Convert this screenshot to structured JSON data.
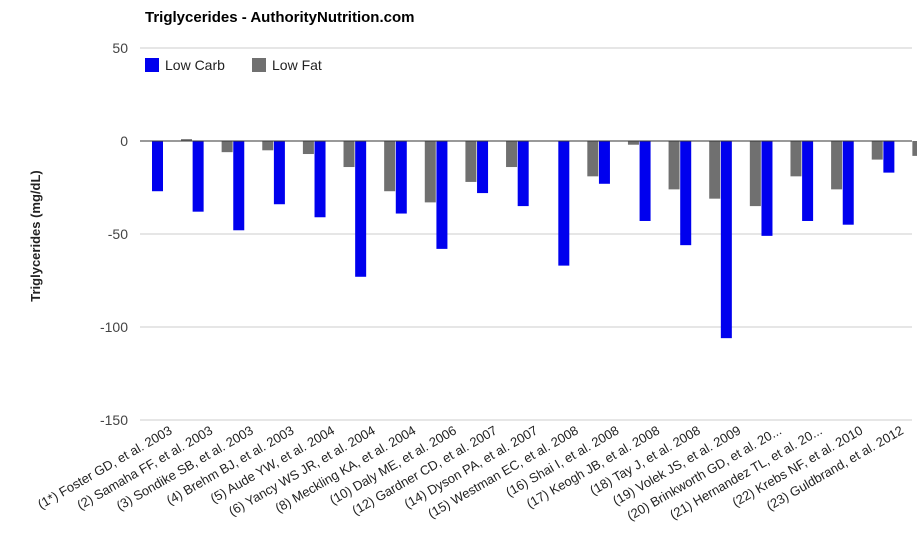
{
  "chart_data": {
    "type": "bar",
    "title": "Triglycerides - AuthorityNutrition.com",
    "xlabel": "",
    "ylabel": "Triglycerides (mg/dL)",
    "ylim": [
      -150,
      50
    ],
    "yticks": [
      50,
      0,
      -50,
      -100,
      -150
    ],
    "grid": true,
    "legend_position": "top-left",
    "categories": [
      "(1*) Foster GD, et al. 2003",
      "(2) Samaha FF, et al. 2003",
      "(3) Sondike SB, et al. 2003",
      "(4) Brehm BJ, et al. 2003",
      "(5) Aude YW, et al. 2004",
      "(6) Yancy WS JR, et al. 2004",
      "(8) Meckling KA, et al. 2004",
      "(10) Daly ME, et al. 2006",
      "(12) Gardner CD, et al. 2007",
      "(14) Dyson PA, et al. 2007",
      "(15) Westman EC, et al. 2008",
      "(16) Shai I, et al. 2008",
      "(17) Keogh JB, et al. 2008",
      "(18) Tay J, et al. 2008",
      "(19) Volek JS, et al. 2009",
      "(20) Brinkworth GD, et al. 20...",
      "(21) Hernandez TL, et al. 20...",
      "(22) Krebs NF, et al. 2010",
      "(23) Guldbrand, et al. 2012"
    ],
    "series": [
      {
        "name": "Low Carb",
        "color": "#0000ee",
        "values": [
          -27,
          -38,
          -48,
          -34,
          -41,
          -73,
          -39,
          -58,
          -28,
          -35,
          -67,
          -23,
          -43,
          -56,
          -106,
          -51,
          -43,
          -45,
          -17
        ]
      },
      {
        "name": "Low Fat",
        "color": "#707070",
        "values": [
          1,
          -6,
          -5,
          -7,
          -14,
          -27,
          -33,
          -22,
          -14,
          null,
          -19,
          -2,
          -26,
          -31,
          -35,
          -19,
          -26,
          -10,
          -8
        ]
      }
    ]
  }
}
